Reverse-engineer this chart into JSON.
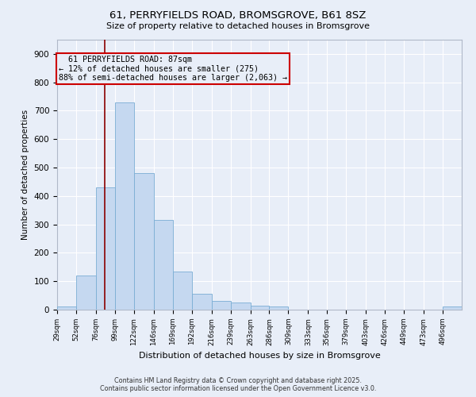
{
  "title": "61, PERRYFIELDS ROAD, BROMSGROVE, B61 8SZ",
  "subtitle": "Size of property relative to detached houses in Bromsgrove",
  "xlabel": "Distribution of detached houses by size in Bromsgrove",
  "ylabel": "Number of detached properties",
  "footer_line1": "Contains HM Land Registry data © Crown copyright and database right 2025.",
  "footer_line2": "Contains public sector information licensed under the Open Government Licence v3.0.",
  "annotation_title": "61 PERRYFIELDS ROAD: 87sqm",
  "annotation_line1": "← 12% of detached houses are smaller (275)",
  "annotation_line2": "88% of semi-detached houses are larger (2,063) →",
  "property_size_sqm": 87,
  "bar_color": "#c5d8f0",
  "bar_edge_color": "#7aadd4",
  "vline_color": "#8b0000",
  "annotation_box_edgecolor": "#cc0000",
  "background_color": "#e8eef8",
  "grid_color": "#ffffff",
  "bin_edges": [
    29,
    52,
    76,
    99,
    122,
    146,
    169,
    192,
    216,
    239,
    263,
    286,
    309,
    333,
    356,
    379,
    403,
    426,
    449,
    473,
    496,
    519
  ],
  "counts": [
    10,
    120,
    430,
    730,
    480,
    315,
    135,
    55,
    30,
    25,
    15,
    10,
    0,
    0,
    0,
    0,
    0,
    0,
    0,
    0,
    10
  ],
  "ylim": [
    0,
    950
  ],
  "yticks": [
    0,
    100,
    200,
    300,
    400,
    500,
    600,
    700,
    800,
    900
  ],
  "xtick_labels": [
    "29sqm",
    "52sqm",
    "76sqm",
    "99sqm",
    "122sqm",
    "146sqm",
    "169sqm",
    "192sqm",
    "216sqm",
    "239sqm",
    "263sqm",
    "286sqm",
    "309sqm",
    "333sqm",
    "356sqm",
    "379sqm",
    "403sqm",
    "426sqm",
    "449sqm",
    "473sqm",
    "496sqm"
  ]
}
